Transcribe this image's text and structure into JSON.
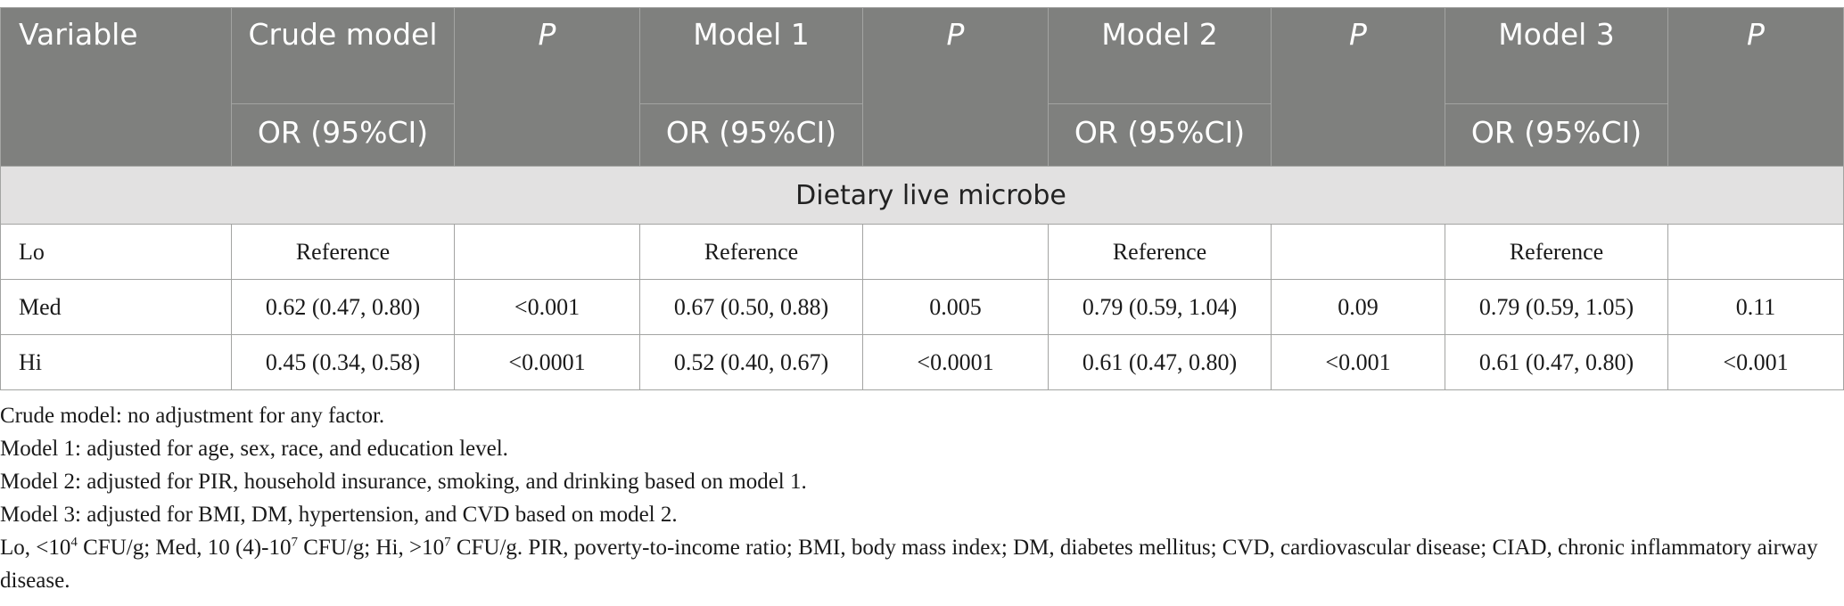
{
  "header": {
    "variable": "Variable",
    "crude_model": "Crude model",
    "model1": "Model 1",
    "model2": "Model 2",
    "model3": "Model 3",
    "p": "P",
    "or_ci": "OR (95%CI)"
  },
  "section_title": "Dietary live microbe",
  "rows": [
    {
      "label": "Lo",
      "crude": "Reference",
      "crude_p": "",
      "m1": "Reference",
      "m1_p": "",
      "m2": "Reference",
      "m2_p": "",
      "m3": "Reference",
      "m3_p": ""
    },
    {
      "label": "Med",
      "crude": "0.62 (0.47, 0.80)",
      "crude_p": "<0.001",
      "m1": "0.67 (0.50, 0.88)",
      "m1_p": "0.005",
      "m2": "0.79 (0.59, 1.04)",
      "m2_p": "0.09",
      "m3": "0.79 (0.59, 1.05)",
      "m3_p": "0.11"
    },
    {
      "label": "Hi",
      "crude": "0.45 (0.34, 0.58)",
      "crude_p": "<0.0001",
      "m1": "0.52 (0.40, 0.67)",
      "m1_p": "<0.0001",
      "m2": "0.61 (0.47, 0.80)",
      "m2_p": "<0.001",
      "m3": "0.61 (0.47, 0.80)",
      "m3_p": "<0.001"
    }
  ],
  "notes": {
    "crude": "Crude model: no adjustment for any factor.",
    "model1": "Model 1: adjusted for age, sex, race, and education level.",
    "model2": "Model 2: adjusted for PIR, household insurance, smoking, and drinking based on model 1.",
    "model3": "Model 3: adjusted for BMI, DM, hypertension, and CVD based on model 2.",
    "abbr_lo_prefix": "Lo, <10",
    "abbr_lo_exp": "4",
    "abbr_med_prefix": " CFU/g; Med, 10 (4)-10",
    "abbr_med_exp": "7",
    "abbr_hi_prefix": " CFU/g; Hi, >10",
    "abbr_hi_exp": "7",
    "abbr_rest": " CFU/g. PIR, poverty-to-income ratio; BMI, body mass index; DM, diabetes mellitus; CVD, cardiovascular disease; CIAD, chronic inflammatory airway disease."
  }
}
